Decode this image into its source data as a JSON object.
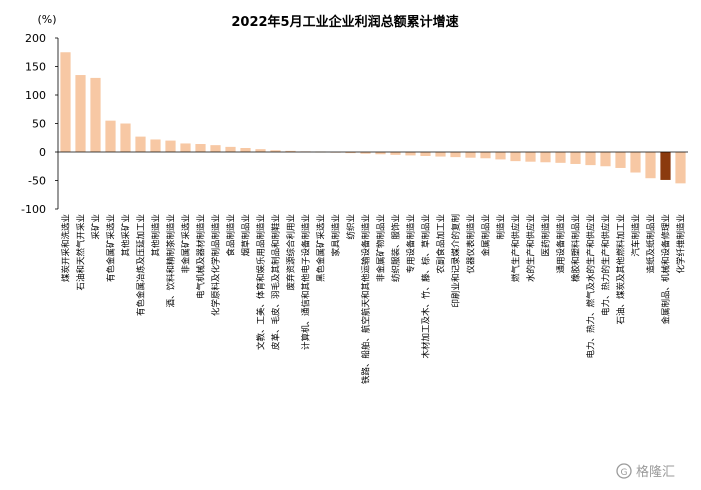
{
  "chart_data": {
    "type": "bar",
    "title": "2022年5月工业企业利润总额累计增速",
    "unit_label": "(%)",
    "ylim": [
      -100,
      200
    ],
    "yticks": [
      -100,
      -50,
      0,
      50,
      100,
      150,
      200
    ],
    "grid": false,
    "negative_tick_color": "#ff0000",
    "bar_color": "#f7c8a4",
    "highlight_color": "#8b3a0e",
    "highlight_index": 40,
    "categories": [
      "煤炭开采和洗选业",
      "石油和天然气开采业",
      "采矿业",
      "有色金属矿采选业",
      "其他采矿业",
      "有色金属冶炼及压延加工业",
      "其他制造业",
      "酒、饮料和精制茶制造业",
      "非金属矿采选业",
      "电气机械及器材制造业",
      "化学原料及化学制品制造业",
      "食品制造业",
      "烟草制品业",
      "文教、工美、体育和娱乐用品制造业",
      "皮革、毛皮、羽毛及其制品和制鞋业",
      "废弃资源综合利用业",
      "计算机、通信和其他电子设备制造业",
      "黑色金属矿采选业",
      "家具制造业",
      "纺织业",
      "铁路、船舶、航空航天和其他运输设备制造业",
      "非金属矿物制品业",
      "纺织服装、服饰业",
      "专用设备制造业",
      "木材加工及木、竹、藤、棕、草制品业",
      "农副食品加工业",
      "印刷业和记录媒介的复制",
      "仪器仪表制造业",
      "金属制品业",
      "制造业",
      "燃气生产和供应业",
      "水的生产和供应业",
      "医药制造业",
      "通用设备制造业",
      "橡胶和塑料制品业",
      "电力、热力、燃气及水的生产和供应业",
      "电力、热力的生产和供应业",
      "石油、煤炭及其他燃料加工业",
      "汽车制造业",
      "造纸及纸制品业",
      "金属制品、机械和设备修理业",
      "化学纤维制造业"
    ],
    "values": [
      175,
      135,
      130,
      55,
      50,
      27,
      22,
      20,
      15,
      14,
      12,
      9,
      7,
      5,
      3,
      2,
      1,
      0,
      -1,
      -2,
      -3,
      -4,
      -5,
      -6,
      -7,
      -8,
      -9,
      -10,
      -11,
      -13,
      -16,
      -17,
      -18,
      -19,
      -21,
      -23,
      -25,
      -28,
      -36,
      -46,
      -49,
      -55
    ]
  },
  "watermark": {
    "text": "格隆汇",
    "logo_glyph": "G"
  }
}
